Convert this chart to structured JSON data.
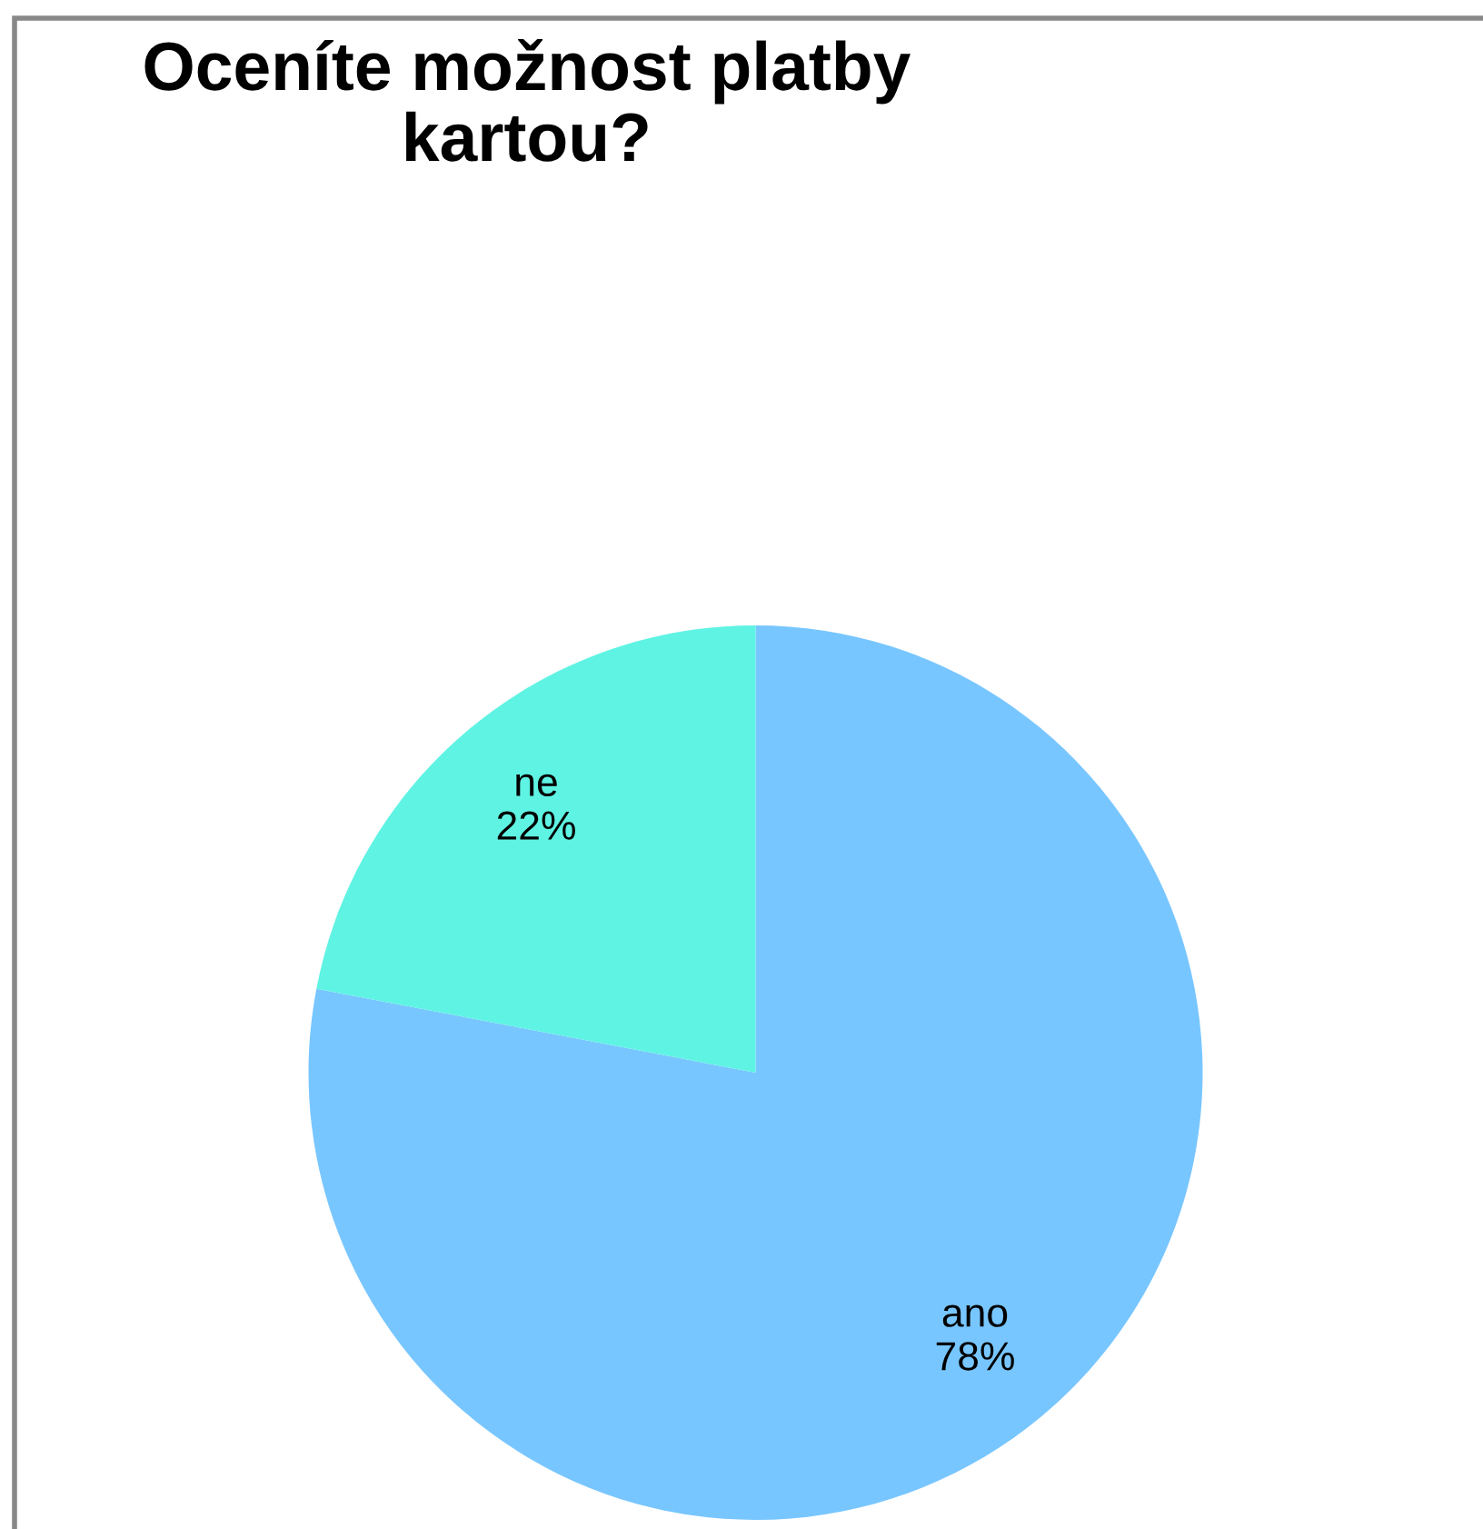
{
  "chart_data": {
    "type": "pie",
    "title": "Oceníte možnost platby\nkartou?",
    "categories": [
      "ano",
      "ne"
    ],
    "values": [
      78,
      22
    ],
    "value_labels": [
      "78%",
      "22%"
    ],
    "colors": [
      "#78c6ff",
      "#5ff3e3"
    ]
  }
}
